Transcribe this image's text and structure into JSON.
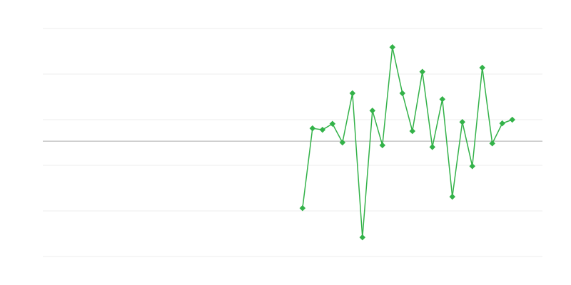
{
  "chart_data": {
    "type": "line",
    "title": "",
    "xlabel": "",
    "ylabel": "",
    "x_index_range": [
      0,
      49
    ],
    "x": [
      26,
      27,
      28,
      29,
      30,
      31,
      32,
      33,
      34,
      35,
      36,
      37,
      38,
      39,
      40,
      41,
      42,
      43,
      44,
      45,
      46,
      47
    ],
    "series": [
      {
        "values": [
          -1.47,
          0.28,
          0.25,
          0.38,
          -0.03,
          1.05,
          -2.11,
          0.67,
          -0.09,
          2.06,
          1.05,
          0.22,
          1.52,
          -0.13,
          0.92,
          -1.22,
          0.42,
          -0.55,
          1.61,
          -0.05,
          0.39,
          0.47
        ],
        "color": "#33b249",
        "marker": "diamond"
      }
    ],
    "ylim": [
      -2.53,
      2.47
    ],
    "gridlines": [
      2.47,
      1.47,
      0.47,
      -0.53,
      -1.53,
      -2.53
    ],
    "baseline": 0,
    "grid": true,
    "legend": "none",
    "colors": {
      "grid": "#ececec",
      "baseline": "#aaaaaa"
    }
  }
}
